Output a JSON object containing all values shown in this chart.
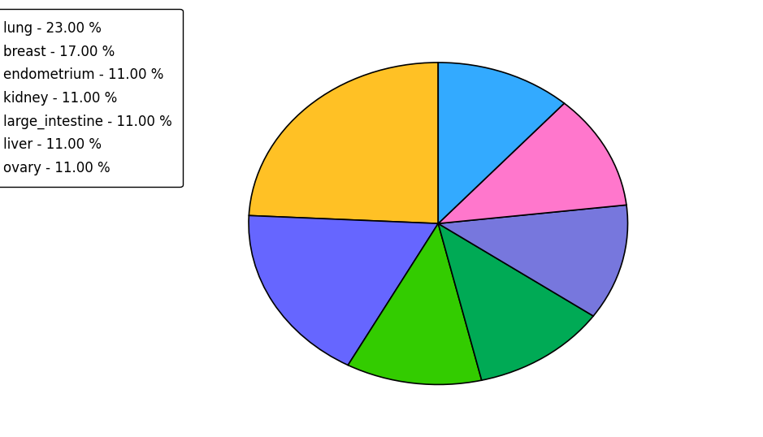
{
  "labels": [
    "lung",
    "breast",
    "endometrium",
    "kidney",
    "large_intestine",
    "liver",
    "ovary"
  ],
  "legend_labels": [
    "lung - 23.00 %",
    "breast - 17.00 %",
    "endometrium - 11.00 %",
    "kidney - 11.00 %",
    "large_intestine - 11.00 %",
    "liver - 11.00 %",
    "ovary - 11.00 %"
  ],
  "values": [
    23,
    17,
    11,
    11,
    11,
    11,
    11
  ],
  "colors": [
    "#FFC125",
    "#6666FF",
    "#33CC00",
    "#00AA55",
    "#7777DD",
    "#FF77CC",
    "#33AAFF"
  ],
  "startangle": 90,
  "figsize": [
    9.39,
    5.38
  ],
  "dpi": 100
}
